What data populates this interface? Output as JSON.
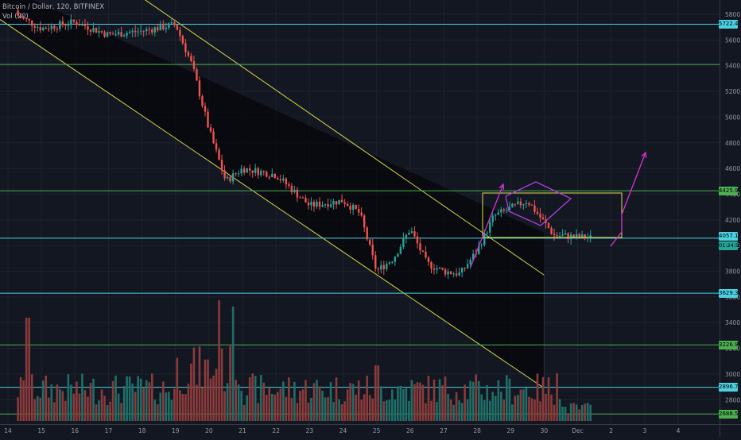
{
  "header": {
    "symbol_line": "Bitcoin / Dollar, 120, BITFINEX",
    "volume_line": "Vol (20)"
  },
  "colors": {
    "background": "#131722",
    "up_candle": "#26a69a",
    "down_candle": "#ef5350",
    "up_volume": "#1f6f68",
    "down_volume": "#8c3b3b",
    "channel": "#d4d44a",
    "level_cyan": "#4dd0e1",
    "level_green": "#4caf50",
    "pattern": "#b040e0",
    "arrow": "#d633d6",
    "range_box": "#e2e24a"
  },
  "price_axis": {
    "ticks": [
      "5800.0",
      "5600.0",
      "5400.0",
      "5200.0",
      "5000.0",
      "4800.0",
      "4600.0",
      "4400.0",
      "4200.0",
      "4000.0",
      "3800.0",
      "3600.0",
      "3400.0",
      "3200.0",
      "3000.0",
      "2800.0"
    ]
  },
  "time_axis": {
    "ticks": [
      "14",
      "15",
      "16",
      "17",
      "18",
      "19",
      "20",
      "21",
      "22",
      "23",
      "24",
      "25",
      "26",
      "27",
      "28",
      "29",
      "30",
      "Dec",
      "2",
      "3",
      "4"
    ]
  },
  "price_tags": [
    {
      "label": "5722.4",
      "kind": "level_cyan"
    },
    {
      "label": "4425.9",
      "kind": "level_green"
    },
    {
      "label": "4057.1",
      "kind": "current"
    },
    {
      "label": "01:24:53",
      "kind": "time"
    },
    {
      "label": "3629.3",
      "kind": "level_cyan"
    },
    {
      "label": "3226.9",
      "kind": "level_green"
    },
    {
      "label": "2896.7",
      "kind": "level_cyan"
    },
    {
      "label": "2688.5",
      "kind": "level_green"
    }
  ],
  "chart_data": {
    "type": "candlestick",
    "symbol": "Bitcoin / Dollar",
    "interval": "120",
    "exchange": "BITFINEX",
    "ylim": [
      2650,
      5950
    ],
    "xlim": [
      "Nov 14",
      "Dec 4"
    ],
    "horizontal_levels": [
      {
        "price": 5722.4,
        "color": "cyan"
      },
      {
        "price": 5410,
        "color": "green"
      },
      {
        "price": 4425.9,
        "color": "green"
      },
      {
        "price": 4057.1,
        "color": "cyan"
      },
      {
        "price": 3629.3,
        "color": "cyan"
      },
      {
        "price": 3226.9,
        "color": "green"
      },
      {
        "price": 2896.7,
        "color": "cyan"
      },
      {
        "price": 2688.5,
        "color": "green"
      }
    ],
    "descending_channel": {
      "upper": {
        "from": [
          "Nov 14",
          6030
        ],
        "to": [
          "Nov 28",
          4100
        ]
      },
      "lower": {
        "from": [
          "Nov 14",
          5760
        ],
        "to": [
          "Nov 30",
          2870
        ]
      }
    },
    "price_path": [
      [
        "Nov 14",
        5830
      ],
      [
        "Nov 15",
        5690
      ],
      [
        "Nov 16",
        5740
      ],
      [
        "Nov 17",
        5640
      ],
      [
        "Nov 18",
        5670
      ],
      [
        "Nov 19",
        5720
      ],
      [
        "Nov 19.5",
        5400
      ],
      [
        "Nov 20",
        4900
      ],
      [
        "Nov 20.5",
        4500
      ],
      [
        "Nov 21",
        4600
      ],
      [
        "Nov 22",
        4550
      ],
      [
        "Nov 23",
        4310
      ],
      [
        "Nov 24",
        4350
      ],
      [
        "Nov 24.5",
        4250
      ],
      [
        "Nov 25",
        3800
      ],
      [
        "Nov 25.5",
        3900
      ],
      [
        "Nov 26",
        4130
      ],
      [
        "Nov 26.5",
        3860
      ],
      [
        "Nov 27",
        3800
      ],
      [
        "Nov 27.5",
        3780
      ],
      [
        "Nov 28",
        3960
      ],
      [
        "Nov 28.5",
        4230
      ],
      [
        "Nov 29",
        4290
      ],
      [
        "Nov 29.5",
        4350
      ],
      [
        "Nov 30",
        4180
      ],
      [
        "Nov 30.3",
        4080
      ],
      [
        "Dec 1",
        4057
      ]
    ],
    "volume_spikes": [
      [
        "Nov 14.6",
        1300
      ],
      [
        "Nov 20.3",
        950
      ],
      [
        "Nov 20.7",
        900
      ],
      [
        "Nov 25",
        700
      ],
      [
        "Nov 30.4",
        600
      ],
      [
        "Nov 28.3",
        450
      ]
    ]
  }
}
